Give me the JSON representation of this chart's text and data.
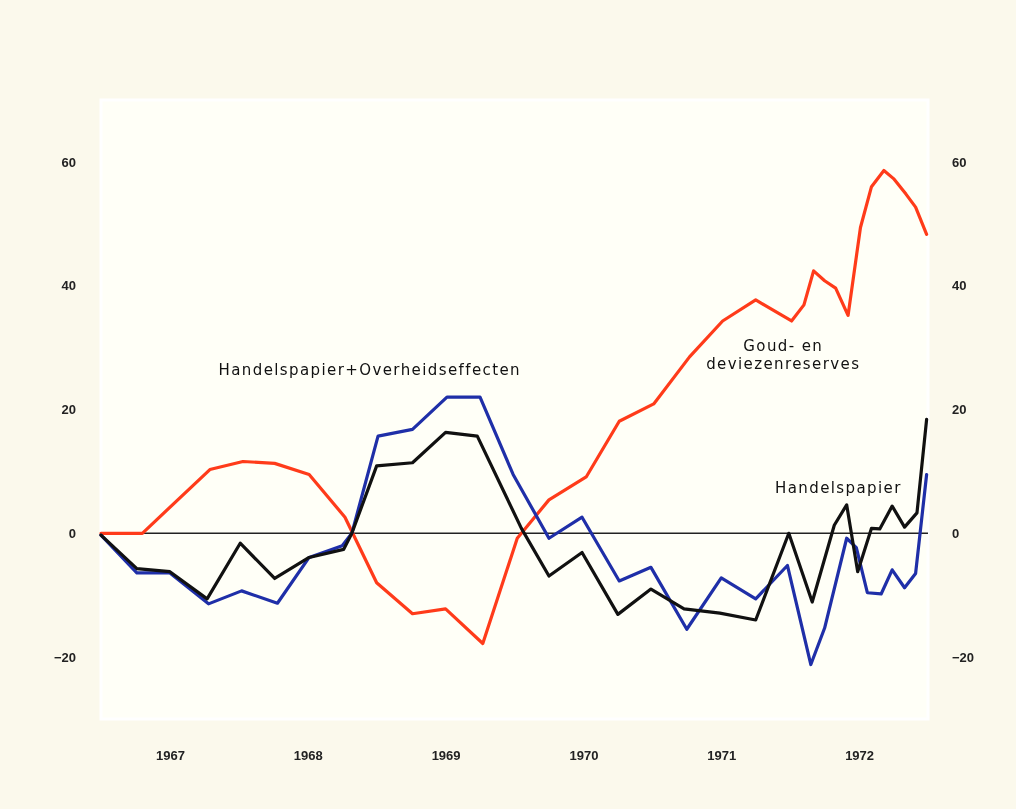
{
  "chart_data": {
    "type": "line",
    "xlim": [
      1967,
      1973
    ],
    "ylim": [
      -30,
      70
    ],
    "y2lim": [
      -30,
      70
    ],
    "xticks": [
      {
        "value": 1967.5,
        "label": "1967"
      },
      {
        "value": 1968.5,
        "label": "1968"
      },
      {
        "value": 1969.5,
        "label": "1969"
      },
      {
        "value": 1970.5,
        "label": "1970"
      },
      {
        "value": 1971.5,
        "label": "1971"
      },
      {
        "value": 1972.5,
        "label": "1972"
      }
    ],
    "yticks": [
      {
        "value": -20,
        "label": "−20"
      },
      0,
      20,
      40,
      60
    ],
    "y2ticks": [
      {
        "value": -20,
        "label": "−20"
      },
      0,
      20,
      40,
      60
    ],
    "grid": false,
    "legend": false,
    "marker": "none",
    "line_style": "solid",
    "ref_lines": [
      {
        "axis": "y",
        "value": 0,
        "color": "#222222"
      }
    ],
    "series": [
      {
        "name": "Goud- en deviezenreserves",
        "color": "#ff3b1a",
        "x": [
          1967.0,
          1967.3,
          1967.79,
          1968.03,
          1968.26,
          1968.51,
          1968.77,
          1969.0,
          1969.26,
          1969.5,
          1969.77,
          1970.02,
          1970.25,
          1970.52,
          1970.76,
          1971.01,
          1971.27,
          1971.51,
          1971.75,
          1972.01,
          1972.1,
          1972.17,
          1972.25,
          1972.33,
          1972.42,
          1972.51,
          1972.59,
          1972.68,
          1972.75,
          1972.84,
          1972.91,
          1972.99
        ],
        "values": [
          0,
          0,
          10.3,
          11.6,
          11.3,
          9.5,
          2.6,
          -8,
          -13,
          -12.2,
          -17.8,
          -0.8,
          5.4,
          9.1,
          18.1,
          20.9,
          28.5,
          34.3,
          37.7,
          34.3,
          36.9,
          42.4,
          40.8,
          39.6,
          35.2,
          49.4,
          56,
          58.6,
          57.3,
          54.8,
          52.7,
          48.3
        ]
      },
      {
        "name": "Handelspapier+Overheidseffecten",
        "color": "#1f2fa8",
        "x": [
          1967.0,
          1967.26,
          1967.5,
          1967.78,
          1968.02,
          1968.28,
          1968.51,
          1968.75,
          1968.82,
          1969.01,
          1969.26,
          1969.51,
          1969.75,
          1969.99,
          1970.25,
          1970.49,
          1970.76,
          1970.99,
          1971.25,
          1971.5,
          1971.75,
          1971.98,
          1972.15,
          1972.25,
          1972.41,
          1972.48,
          1972.56,
          1972.66,
          1972.74,
          1972.83,
          1972.91,
          1972.99
        ],
        "values": [
          -0.3,
          -6.4,
          -6.4,
          -11.4,
          -9.3,
          -11.3,
          -3.9,
          -2,
          0,
          15.7,
          16.8,
          22,
          22,
          9.5,
          -0.8,
          2.6,
          -7.7,
          -5.5,
          -15.5,
          -7.2,
          -10.6,
          -5.2,
          -21.2,
          -15.3,
          -0.8,
          -2.3,
          -9.6,
          -9.8,
          -5.9,
          -8.8,
          -6.5,
          9.5
        ]
      },
      {
        "name": "Handelspapier",
        "color": "#111111",
        "x": [
          1967.0,
          1967.26,
          1967.5,
          1967.77,
          1968.01,
          1968.26,
          1968.51,
          1968.76,
          1968.82,
          1969.0,
          1969.26,
          1969.5,
          1969.73,
          1970.05,
          1970.25,
          1970.49,
          1970.75,
          1970.99,
          1971.23,
          1971.49,
          1971.75,
          1971.99,
          1972.16,
          1972.32,
          1972.41,
          1972.49,
          1972.59,
          1972.65,
          1972.74,
          1972.83,
          1972.92,
          1972.99
        ],
        "values": [
          -0.3,
          -5.7,
          -6.2,
          -10.6,
          -1.6,
          -7.3,
          -3.9,
          -2.6,
          0,
          10.9,
          11.4,
          16.3,
          15.7,
          0.8,
          -6.9,
          -3.1,
          -13.1,
          -9,
          -12.2,
          -12.9,
          -14,
          0,
          -11.1,
          1.3,
          4.6,
          -6.2,
          0.8,
          0.7,
          4.4,
          1,
          3.3,
          18.4
        ]
      }
    ]
  }
}
